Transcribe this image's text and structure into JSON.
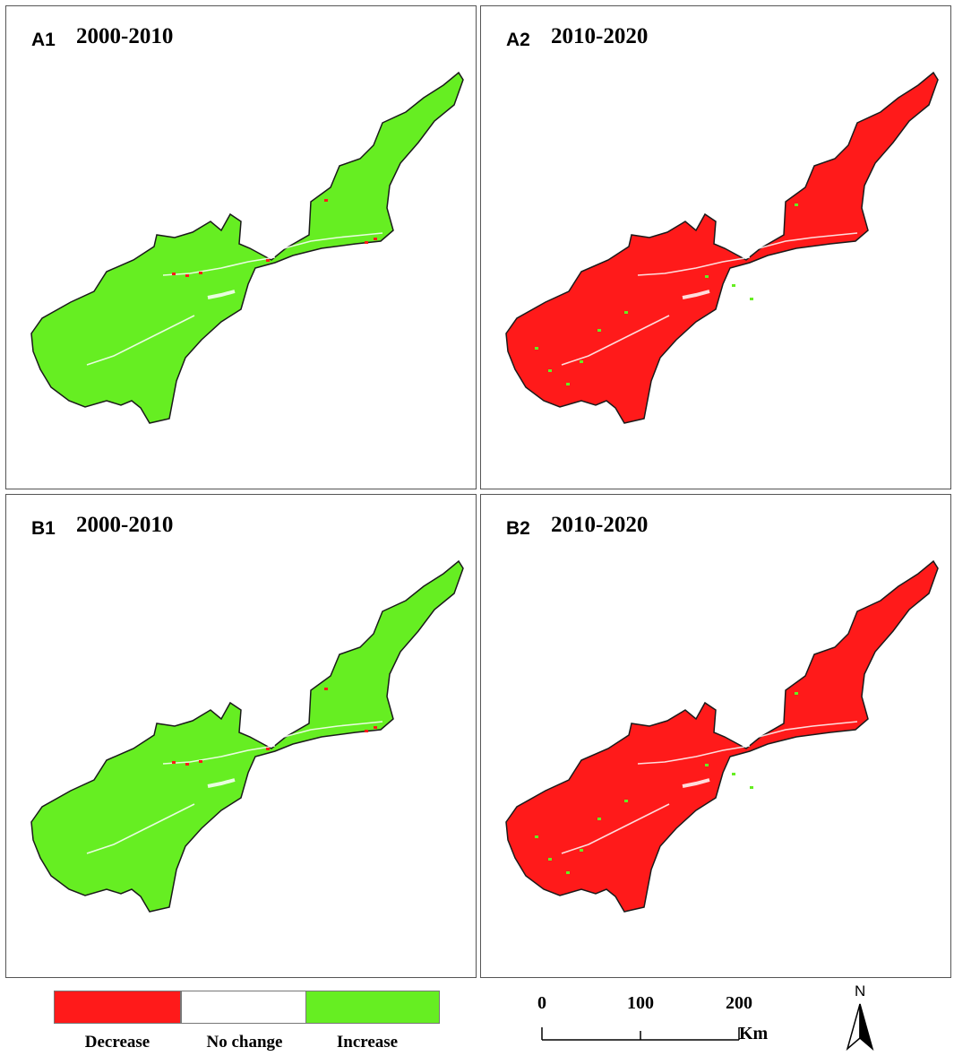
{
  "panels": [
    {
      "id": "A1",
      "period": "2000-2010",
      "fill": "#66ee22"
    },
    {
      "id": "A2",
      "period": "2010-2020",
      "fill": "#ff1a1a"
    },
    {
      "id": "B1",
      "period": "2000-2010",
      "fill": "#66ee22"
    },
    {
      "id": "B2",
      "period": "2010-2020",
      "fill": "#ff1a1a"
    }
  ],
  "legend": {
    "items": [
      {
        "label": "Decrease",
        "color": "#ff1a1a"
      },
      {
        "label": "No change",
        "color": "#ffffff"
      },
      {
        "label": "Increase",
        "color": "#66ee22"
      }
    ]
  },
  "scale_bar": {
    "ticks": [
      "0",
      "100",
      "200"
    ],
    "unit": "Km"
  },
  "north_arrow": {
    "letter": "N",
    "icon": "north-arrow-icon"
  }
}
